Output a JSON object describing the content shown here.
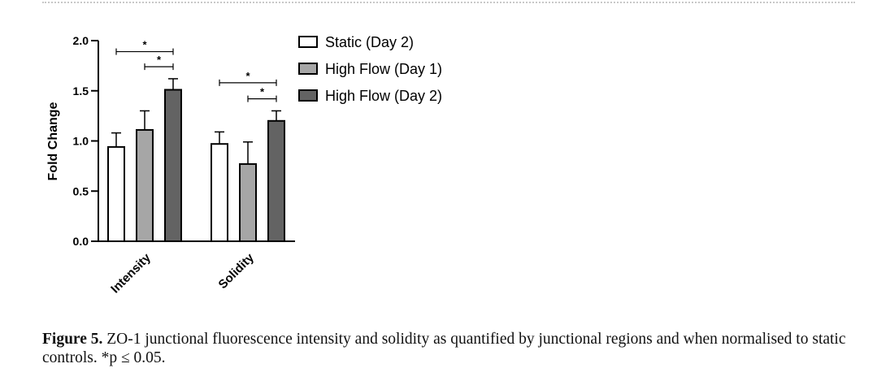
{
  "chart_data": {
    "type": "bar",
    "categories": [
      "Intensity",
      "Solidity"
    ],
    "series": [
      {
        "name": "Static (Day 2)",
        "color": "#ffffff",
        "values": [
          0.94,
          0.97
        ],
        "errors": [
          0.14,
          0.12
        ]
      },
      {
        "name": "High Flow (Day 1)",
        "color": "#a6a6a6",
        "values": [
          1.11,
          0.77
        ],
        "errors": [
          0.19,
          0.22
        ]
      },
      {
        "name": "High Flow (Day 2)",
        "color": "#636363",
        "values": [
          1.51,
          1.2
        ],
        "errors": [
          0.11,
          0.1
        ]
      }
    ],
    "ylabel": "Fold Change",
    "xlabel": "",
    "ylim": [
      0,
      2.0
    ],
    "yticks": [
      "0.0",
      "0.5",
      "1.0",
      "1.5",
      "2.0"
    ],
    "significance": [
      {
        "category": 0,
        "from_series": 0,
        "to_series": 2,
        "label": "*",
        "level": 1.89
      },
      {
        "category": 0,
        "from_series": 1,
        "to_series": 2,
        "label": "*",
        "level": 1.74
      },
      {
        "category": 1,
        "from_series": 0,
        "to_series": 2,
        "label": "*",
        "level": 1.58
      },
      {
        "category": 1,
        "from_series": 1,
        "to_series": 2,
        "label": "*",
        "level": 1.42
      }
    ],
    "legend_position": "top-right"
  },
  "caption": {
    "label": "Figure 5.",
    "text": "ZO-1 junctional fluorescence intensity and solidity as quantified by junctional regions and when normalised to static controls. *p ≤ 0.05."
  }
}
